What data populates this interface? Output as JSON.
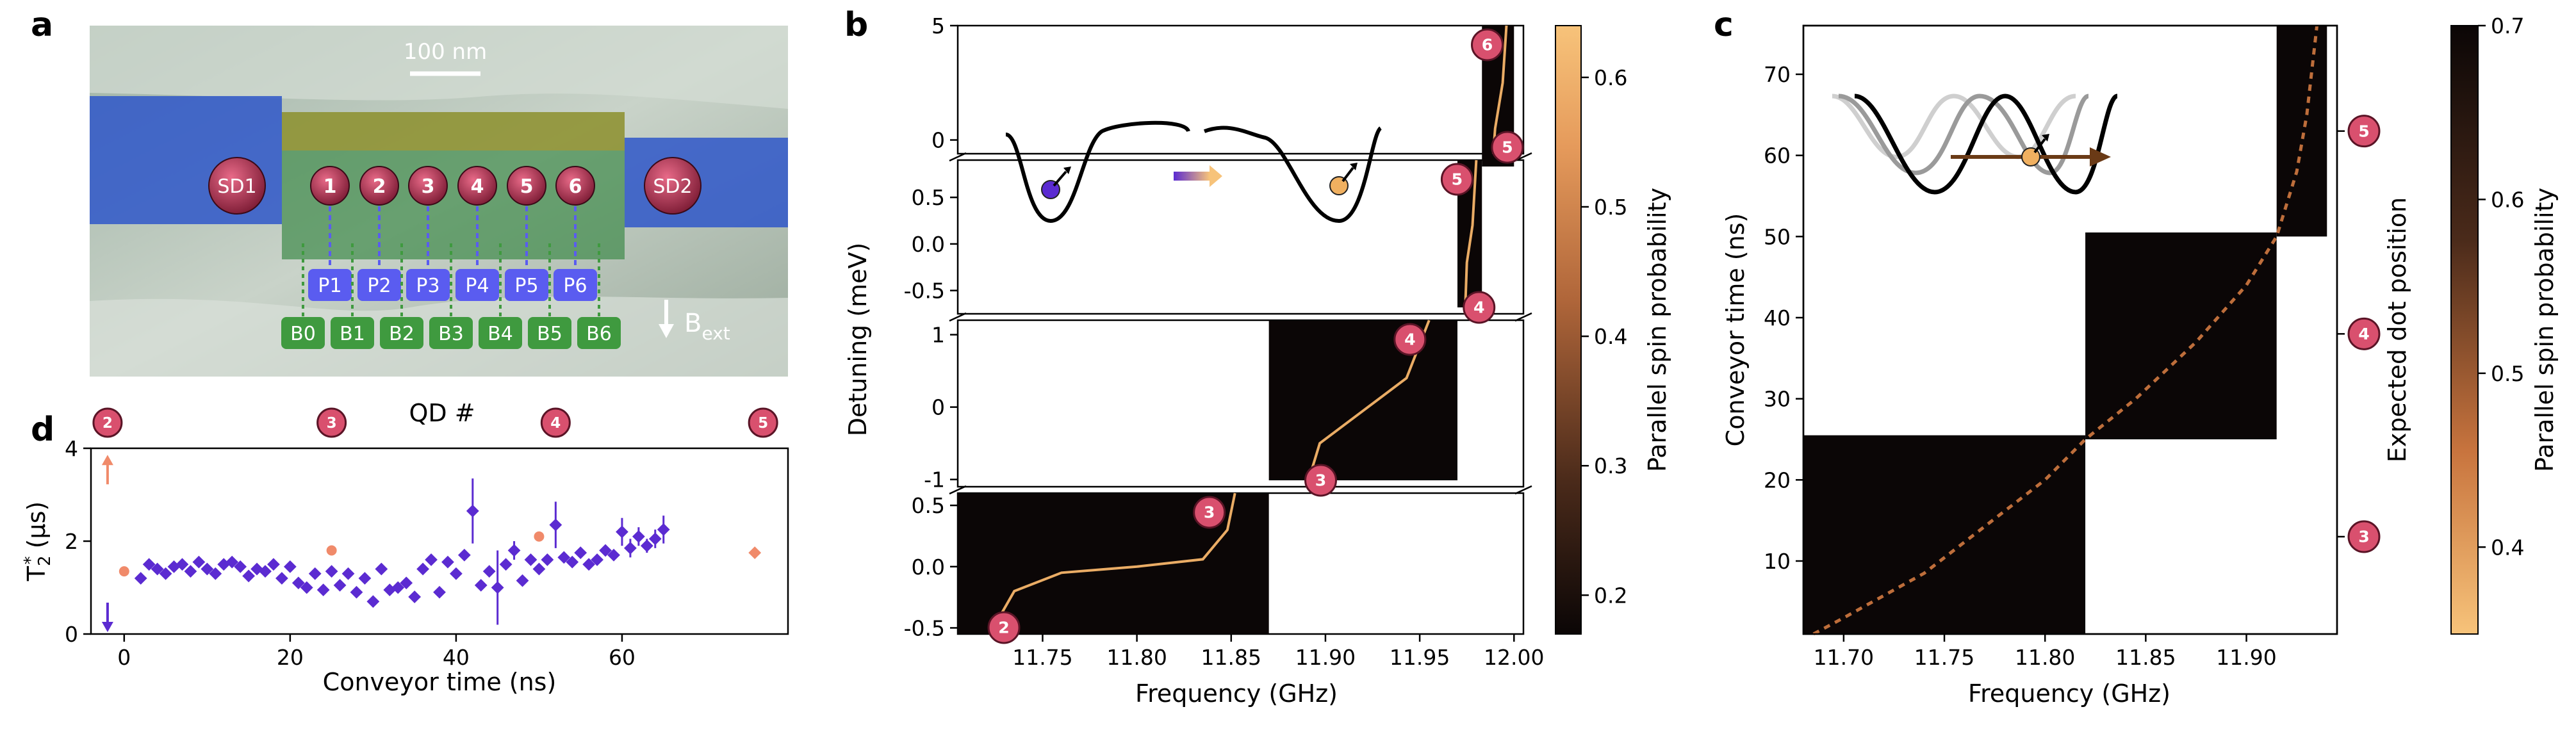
{
  "panel_labels": {
    "a": "a",
    "b": "b",
    "c": "c",
    "d": "d"
  },
  "device": {
    "scale_bar": "100 nm",
    "sd_labels": [
      "SD1",
      "SD2"
    ],
    "dot_labels": [
      "1",
      "2",
      "3",
      "4",
      "5",
      "6"
    ],
    "plunger_labels": [
      "P1",
      "P2",
      "P3",
      "P4",
      "P5",
      "P6"
    ],
    "barrier_labels": [
      "B0",
      "B1",
      "B2",
      "B3",
      "B4",
      "B5",
      "B6"
    ],
    "field_label": "B",
    "field_subscript": "ext"
  },
  "colors": {
    "dot_marker": "#d9506e",
    "plunger": "#5a5cf0",
    "barrier": "#3f9a3f",
    "conveyor": "#5b2bd1",
    "static": "#f08a6a",
    "cmap_dark": "#0b0606",
    "cmap_light": "#f7c37a"
  },
  "chart_data": [
    {
      "id": "panel_b",
      "type": "heatmap",
      "xlabel": "Frequency (GHz)",
      "ylabel": "Detuning (meV)",
      "xlim": [
        11.705,
        12.005
      ],
      "xticks": [
        "11.75",
        "11.80",
        "11.85",
        "11.90",
        "11.95",
        "12.00"
      ],
      "colorbar_label": "Parallel spin probability",
      "colorbar_range": [
        0.17,
        0.64
      ],
      "colorbar_ticks": [
        "0.2",
        "0.3",
        "0.4",
        "0.5",
        "0.6"
      ],
      "subplots": [
        {
          "dots": [
            "2",
            "3"
          ],
          "ylim": [
            -0.55,
            0.6
          ],
          "yticks": [
            "-0.5",
            "0.0",
            "0.5"
          ],
          "xrange": [
            11.705,
            11.87
          ],
          "resonance": [
            [
              11.722,
              -0.55
            ],
            [
              11.735,
              -0.2
            ],
            [
              11.76,
              -0.05
            ],
            [
              11.8,
              0.0
            ],
            [
              11.835,
              0.06
            ],
            [
              11.848,
              0.3
            ],
            [
              11.852,
              0.6
            ]
          ]
        },
        {
          "dots": [
            "3",
            "4"
          ],
          "ylim": [
            -1.1,
            1.2
          ],
          "yticks": [
            "-1",
            "0",
            "1"
          ],
          "xrange": [
            11.87,
            11.97
          ],
          "resonance": [
            [
              11.89,
              -1.1
            ],
            [
              11.897,
              -0.5
            ],
            [
              11.92,
              -0.05
            ],
            [
              11.943,
              0.4
            ],
            [
              11.955,
              1.2
            ]
          ]
        },
        {
          "dots": [
            "4",
            "5"
          ],
          "ylim": [
            -0.75,
            0.9
          ],
          "yticks": [
            "-0.5",
            "0.0",
            "0.5"
          ],
          "xrange": [
            11.97,
            11.983
          ],
          "resonance": [
            [
              11.974,
              -0.75
            ],
            [
              11.975,
              -0.2
            ],
            [
              11.978,
              0.2
            ],
            [
              11.98,
              0.9
            ]
          ]
        },
        {
          "dots": [
            "5",
            "6"
          ],
          "ylim": [
            -0.6,
            5
          ],
          "yticks": [
            "0",
            "5"
          ],
          "xrange": [
            11.983,
            12.0
          ],
          "resonance": [
            [
              11.989,
              -0.6
            ],
            [
              11.99,
              0.5
            ],
            [
              11.994,
              2.5
            ],
            [
              11.996,
              5
            ]
          ]
        }
      ]
    },
    {
      "id": "panel_c",
      "type": "heatmap",
      "xlabel": "Frequency (GHz)",
      "ylabel": "Conveyor time (ns)",
      "ylabel_right": "Expected dot position",
      "xlim": [
        11.68,
        11.945
      ],
      "ylim": [
        1,
        76
      ],
      "xticks": [
        "11.70",
        "11.75",
        "11.80",
        "11.85",
        "11.90"
      ],
      "yticks": [
        "10",
        "20",
        "30",
        "40",
        "50",
        "60",
        "70"
      ],
      "right_markers": [
        {
          "label": "3",
          "y": 13
        },
        {
          "label": "4",
          "y": 38
        },
        {
          "label": "5",
          "y": 63
        }
      ],
      "colorbar_label": "Parallel spin probability",
      "colorbar_range": [
        0.35,
        0.7
      ],
      "colorbar_ticks": [
        "0.4",
        "0.5",
        "0.6",
        "0.7"
      ],
      "blocks": [
        {
          "x": [
            11.68,
            11.82
          ],
          "y": [
            1,
            25.5
          ]
        },
        {
          "x": [
            11.82,
            11.915
          ],
          "y": [
            25,
            50.5
          ]
        },
        {
          "x": [
            11.915,
            11.94
          ],
          "y": [
            50,
            76
          ]
        }
      ],
      "trace": [
        [
          11.685,
          1
        ],
        [
          11.7,
          3
        ],
        [
          11.74,
          8.5
        ],
        [
          11.8,
          20
        ],
        [
          11.82,
          25
        ],
        [
          11.845,
          30
        ],
        [
          11.875,
          37
        ],
        [
          11.9,
          44
        ],
        [
          11.915,
          50
        ],
        [
          11.925,
          58
        ],
        [
          11.93,
          65
        ],
        [
          11.935,
          76
        ]
      ]
    },
    {
      "id": "panel_d",
      "type": "scatter",
      "xlabel": "Conveyor time (ns)",
      "ylabel": "T2* (µs)",
      "ylabel_main": "T",
      "ylabel_sub": "2",
      "ylabel_sup": "*",
      "ylabel_unit": " (µs)",
      "top_axis_label": "QD #",
      "top_markers": [
        {
          "label": "2",
          "x": -2
        },
        {
          "label": "3",
          "x": 25
        },
        {
          "label": "4",
          "x": 52
        },
        {
          "label": "5",
          "x": 77
        }
      ],
      "xlim": [
        -4,
        80
      ],
      "ylim": [
        0,
        4
      ],
      "xticks": [
        "0",
        "20",
        "40",
        "60"
      ],
      "yticks": [
        "0",
        "2",
        "4"
      ],
      "conveyor_series": {
        "x": [
          2,
          3,
          4,
          5,
          6,
          7,
          8,
          9,
          10,
          11,
          12,
          13,
          14,
          15,
          16,
          17,
          18,
          19,
          20,
          21,
          22,
          23,
          24,
          25,
          26,
          27,
          28,
          29,
          30,
          31,
          32,
          33,
          34,
          35,
          36,
          37,
          38,
          39,
          40,
          41,
          42,
          43,
          44,
          45,
          46,
          47,
          48,
          49,
          50,
          51,
          52,
          53,
          54,
          55,
          56,
          57,
          58,
          59,
          60,
          61,
          62,
          63,
          64,
          65
        ],
        "y": [
          1.2,
          1.5,
          1.4,
          1.3,
          1.45,
          1.5,
          1.35,
          1.55,
          1.4,
          1.3,
          1.5,
          1.55,
          1.45,
          1.25,
          1.4,
          1.35,
          1.5,
          1.2,
          1.45,
          1.1,
          1.0,
          1.3,
          0.95,
          1.35,
          1.05,
          1.3,
          0.9,
          1.2,
          0.7,
          1.4,
          0.95,
          1.0,
          1.1,
          0.8,
          1.4,
          1.6,
          0.9,
          1.55,
          1.3,
          1.7,
          2.65,
          1.05,
          1.35,
          1.0,
          1.5,
          1.8,
          1.15,
          1.6,
          1.4,
          1.6,
          2.35,
          1.65,
          1.55,
          1.75,
          1.5,
          1.6,
          1.8,
          1.7,
          2.2,
          1.85,
          2.1,
          1.9,
          2.05,
          2.25
        ],
        "yerr": [
          0.05,
          0.05,
          0.05,
          0.05,
          0.05,
          0.05,
          0.05,
          0.05,
          0.05,
          0.05,
          0.05,
          0.05,
          0.05,
          0.05,
          0.05,
          0.05,
          0.05,
          0.05,
          0.05,
          0.05,
          0.05,
          0.05,
          0.05,
          0.05,
          0.05,
          0.05,
          0.05,
          0.05,
          0.05,
          0.05,
          0.05,
          0.05,
          0.05,
          0.05,
          0.05,
          0.05,
          0.05,
          0.05,
          0.05,
          0.05,
          0.7,
          0.05,
          0.05,
          0.8,
          0.1,
          0.2,
          0.05,
          0.1,
          0.05,
          0.1,
          0.5,
          0.1,
          0.1,
          0.1,
          0.1,
          0.1,
          0.1,
          0.1,
          0.3,
          0.2,
          0.2,
          0.15,
          0.2,
          0.3
        ]
      },
      "static_series": {
        "x": [
          0,
          25,
          50,
          76
        ],
        "y": [
          1.35,
          1.8,
          2.1,
          1.75
        ]
      },
      "arrow_up": {
        "x": -2,
        "y": 3.5
      },
      "arrow_down": {
        "x": -2,
        "y": 0.4
      }
    }
  ]
}
